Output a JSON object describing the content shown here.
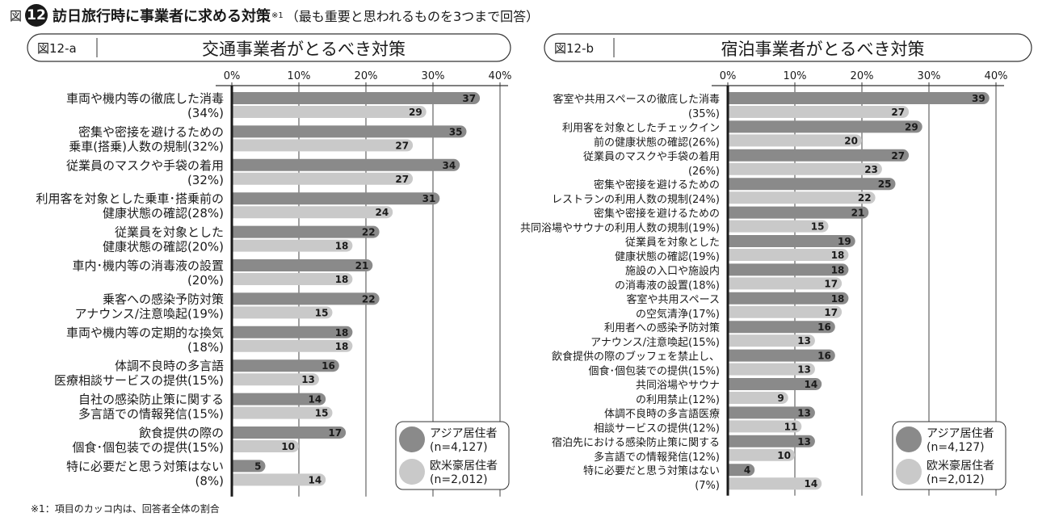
{
  "figure": {
    "prefix": "図",
    "number": "12",
    "title": "訪日旅行時に事業者に求める対策",
    "title_mark": "※1",
    "note": "（最も重要と思われるものを3つまで回答）",
    "footnote": "※1：項目のカッコ内は、回答者全体の割合"
  },
  "colors": {
    "asia": "#8a8a8a",
    "west": "#c9c9c9",
    "axis": "#1a1a1a",
    "grid": "#8a8a8a"
  },
  "chart_data": [
    {
      "id": "12-a",
      "type": "bar",
      "panel_label": "図12-a",
      "title": "交通事業者がとるべき対策",
      "xlim": [
        0,
        40
      ],
      "ticks": [
        "0%",
        "10%",
        "20%",
        "30%",
        "40%"
      ],
      "grid": true,
      "legend": {
        "position": "bottom-right",
        "entries": [
          {
            "name": "アジア居住者",
            "n": "(n=4,127)"
          },
          {
            "name": "欧米豪居住者",
            "n": "(n=2,012)"
          }
        ]
      },
      "categories": [
        [
          "車両や機内等の徹底した消毒",
          "(34%)"
        ],
        [
          "密集や密接を避けるための",
          "乗車(搭乗)人数の規制(32%)"
        ],
        [
          "従業員のマスクや手袋の着用",
          "(32%)"
        ],
        [
          "利用客を対象とした乗車･搭乗前の",
          "健康状態の確認(28%)"
        ],
        [
          "従業員を対象とした",
          "健康状態の確認(20%)"
        ],
        [
          "車内･機内等の消毒液の設置",
          "(20%)"
        ],
        [
          "乗客への感染予防対策",
          "アナウンス/注意喚起(19%)"
        ],
        [
          "車両や機内等の定期的な換気",
          "(18%)"
        ],
        [
          "体調不良時の多言語",
          "医療相談サービスの提供(15%)"
        ],
        [
          "自社の感染防止策に関する",
          "多言語での情報発信(15%)"
        ],
        [
          "飲食提供の際の",
          "個食･個包装での提供(15%)"
        ],
        [
          "特に必要だと思う対策はない",
          "(8%)"
        ]
      ],
      "series": [
        {
          "name": "アジア居住者",
          "values": [
            37,
            35,
            34,
            31,
            22,
            21,
            22,
            18,
            16,
            14,
            17,
            5
          ]
        },
        {
          "name": "欧米豪居住者",
          "values": [
            29,
            27,
            27,
            24,
            18,
            18,
            15,
            18,
            13,
            15,
            10,
            14
          ]
        }
      ]
    },
    {
      "id": "12-b",
      "type": "bar",
      "panel_label": "図12-b",
      "title": "宿泊事業者がとるべき対策",
      "xlim": [
        0,
        40
      ],
      "ticks": [
        "0%",
        "10%",
        "20%",
        "30%",
        "40%"
      ],
      "grid": true,
      "legend": {
        "position": "bottom-right",
        "entries": [
          {
            "name": "アジア居住者",
            "n": "(n=4,127)"
          },
          {
            "name": "欧米豪居住者",
            "n": "(n=2,012)"
          }
        ]
      },
      "categories": [
        [
          "客室や共用スペースの徹底した消毒",
          "(35%)"
        ],
        [
          "利用客を対象としたチェックイン",
          "前の健康状態の確認(26%)"
        ],
        [
          "従業員のマスクや手袋の着用",
          "(26%)"
        ],
        [
          "密集や密接を避けるための",
          "レストランの利用人数の規制(24%)"
        ],
        [
          "密集や密接を避けるための",
          "共同浴場やサウナの利用人数の規制(19%)"
        ],
        [
          "従業員を対象とした",
          "健康状態の確認(19%)"
        ],
        [
          "施設の入口や施設内",
          "の消毒液の設置(18%)"
        ],
        [
          "客室や共用スペース",
          "の空気清浄(17%)"
        ],
        [
          "利用者への感染予防対策",
          "アナウンス/注意喚起(15%)"
        ],
        [
          "飲食提供の際のブッフェを禁止し、",
          "個食･個包装での提供(15%)"
        ],
        [
          "共同浴場やサウナ",
          "の利用禁止(12%)"
        ],
        [
          "体調不良時の多言語医療",
          "相談サービスの提供(12%)"
        ],
        [
          "宿泊先における感染防止策に関する",
          "多言語での情報発信(12%)"
        ],
        [
          "特に必要だと思う対策はない",
          "(7%)"
        ]
      ],
      "series": [
        {
          "name": "アジア居住者",
          "values": [
            39,
            29,
            27,
            25,
            21,
            19,
            18,
            18,
            16,
            16,
            14,
            13,
            13,
            4
          ]
        },
        {
          "name": "欧米豪居住者",
          "values": [
            27,
            20,
            23,
            22,
            15,
            18,
            17,
            17,
            13,
            13,
            9,
            11,
            10,
            14
          ]
        }
      ]
    }
  ]
}
